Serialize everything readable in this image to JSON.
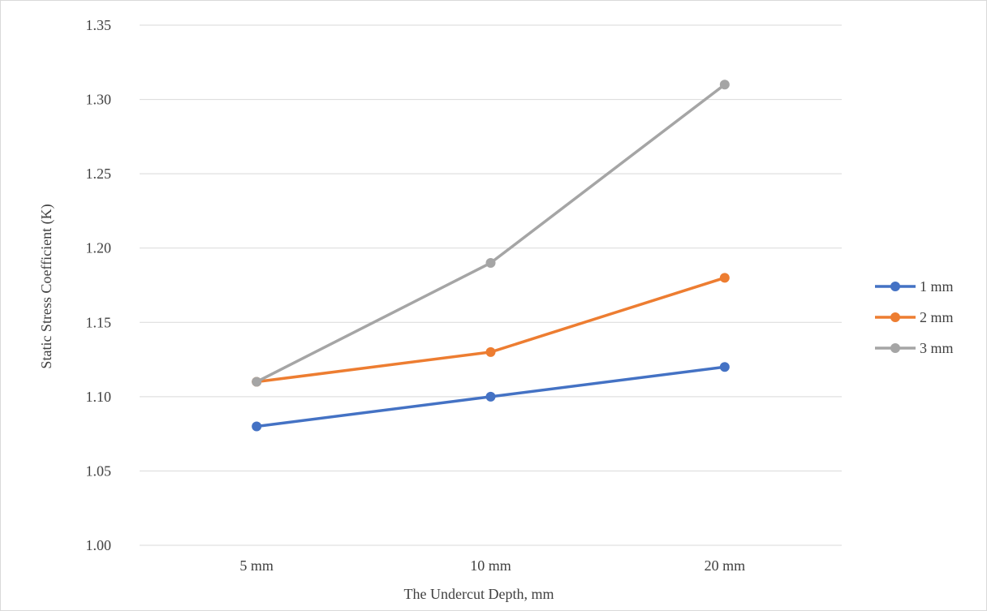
{
  "chart_data": {
    "type": "line",
    "title": "",
    "xlabel": "The Undercut Depth, mm",
    "ylabel": "Static Stress Coefficient (K)",
    "categories": [
      "5 mm",
      "10 mm",
      "20 mm"
    ],
    "ylim": [
      1.0,
      1.35
    ],
    "yticks": [
      "1.00",
      "1.05",
      "1.10",
      "1.15",
      "1.20",
      "1.25",
      "1.30",
      "1.35"
    ],
    "grid": true,
    "legend_position": "right",
    "series": [
      {
        "name": "1 mm",
        "color": "#4472C4",
        "values": [
          1.08,
          1.1,
          1.12
        ]
      },
      {
        "name": "2 mm",
        "color": "#ED7D31",
        "values": [
          1.11,
          1.13,
          1.18
        ]
      },
      {
        "name": "3 mm",
        "color": "#A5A5A5",
        "values": [
          1.11,
          1.19,
          1.31
        ]
      }
    ]
  }
}
